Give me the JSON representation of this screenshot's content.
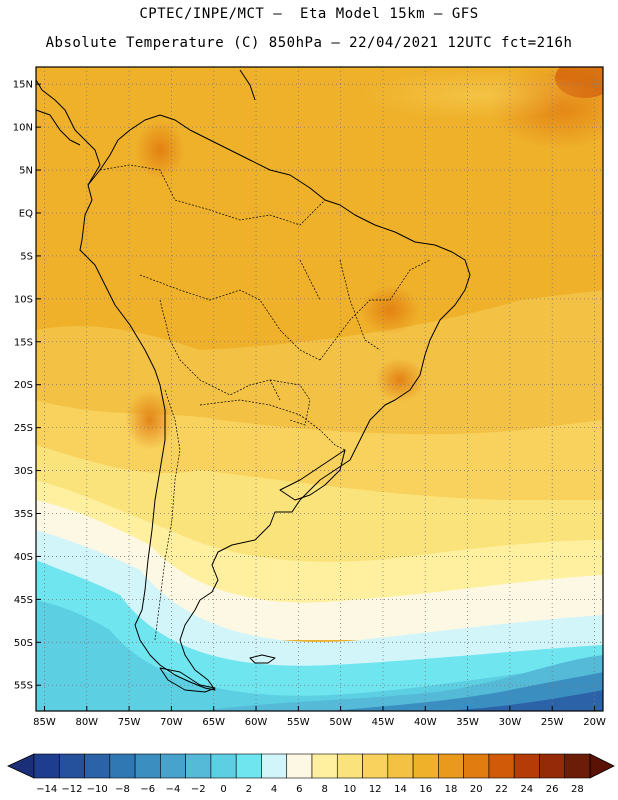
{
  "header": {
    "line1": "CPTEC/INPE/MCT –  Eta Model 15km – GFS",
    "line2": "Absolute Temperature (C) 850hPa – 22/04/2021 12UTC fct=216h"
  },
  "map": {
    "lat_labels": [
      "15N",
      "10N",
      "5N",
      "EQ",
      "5S",
      "10S",
      "15S",
      "20S",
      "25S",
      "30S",
      "35S",
      "40S",
      "45S",
      "50S",
      "55S"
    ],
    "lon_labels": [
      "85W",
      "80W",
      "75W",
      "70W",
      "65W",
      "60W",
      "55W",
      "50W",
      "45W",
      "40W",
      "35W",
      "30W",
      "25W",
      "20W"
    ],
    "lat_range": [
      -58,
      17
    ],
    "lon_range": [
      -86,
      -19
    ],
    "grid": true
  },
  "colorbar": {
    "labels": [
      "-14",
      "-12",
      "-10",
      "-8",
      "-6",
      "-4",
      "-2",
      "0",
      "2",
      "4",
      "6",
      "8",
      "10",
      "12",
      "14",
      "16",
      "18",
      "20",
      "22",
      "24",
      "26",
      "28"
    ],
    "colors": [
      "#1f3d8f",
      "#25509b",
      "#2b62a8",
      "#3078b4",
      "#3b8ec0",
      "#47a3cc",
      "#54bad8",
      "#5dcfe3",
      "#6fe6ef",
      "#d2f5fa",
      "#fdf8e3",
      "#fff0a0",
      "#fbe37b",
      "#f8d25c",
      "#f3c244",
      "#efb12a",
      "#e99a1c",
      "#e17c10",
      "#d15a08",
      "#b53c06",
      "#942a08",
      "#6c1d08"
    ]
  }
}
